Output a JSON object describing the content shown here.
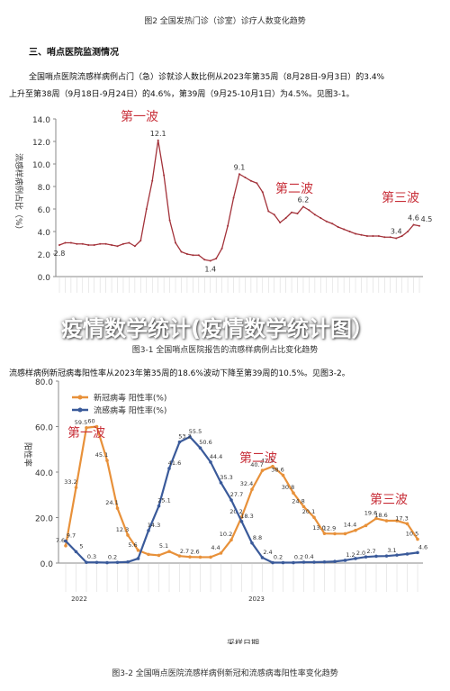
{
  "top_caption": "图2 全国发热门诊（诊室）诊疗人数变化趋势",
  "section_heading": "三、哨点医院监测情况",
  "paragraph1": [
    "全国哨点医院流感样病例占门（急）诊就诊人数比例从2023年第35周（8月28日-9月3日）的3.4%",
    "上升至第38周（9月18日-9月24日）的4.6%，第39周（9月25-10月1日）为4.5%。见图3-1。"
  ],
  "chart1": {
    "type": "line",
    "ylabel": "流感样病例占比（%）",
    "ylim": [
      0,
      14
    ],
    "yticks": [
      {
        "value": 0,
        "label": "0.0"
      },
      {
        "value": 2,
        "label": "2.0"
      },
      {
        "value": 4,
        "label": "4.0"
      },
      {
        "value": 6,
        "label": "6.0"
      },
      {
        "value": 8,
        "label": "8.0"
      },
      {
        "value": 10,
        "label": "10.0"
      },
      {
        "value": 12,
        "label": "12.0"
      },
      {
        "value": 14,
        "label": "14.0"
      }
    ],
    "color": "#a3323a",
    "values": [
      2.8,
      3.0,
      3.0,
      2.9,
      2.9,
      2.8,
      2.8,
      2.9,
      2.9,
      2.8,
      2.7,
      2.9,
      3.0,
      2.7,
      3.2,
      6.0,
      8.5,
      12.1,
      9.0,
      5.0,
      3.0,
      2.2,
      2.0,
      1.9,
      1.9,
      1.5,
      1.4,
      1.6,
      2.5,
      4.5,
      7.0,
      9.1,
      8.8,
      8.5,
      8.3,
      7.5,
      5.8,
      5.5,
      4.8,
      5.2,
      5.7,
      5.6,
      6.2,
      5.9,
      5.5,
      5.2,
      4.9,
      4.7,
      4.4,
      4.2,
      4.0,
      3.8,
      3.7,
      3.6,
      3.6,
      3.6,
      3.5,
      3.5,
      3.4,
      3.6,
      4.0,
      4.6,
      4.5
    ],
    "value_labels": [
      "2.8",
      null,
      null,
      null,
      null,
      null,
      null,
      null,
      null,
      null,
      null,
      null,
      null,
      null,
      null,
      null,
      null,
      "12.1",
      null,
      null,
      null,
      null,
      null,
      null,
      null,
      null,
      "1.4",
      null,
      null,
      null,
      null,
      "9.1",
      null,
      null,
      null,
      null,
      null,
      null,
      null,
      null,
      null,
      null,
      "6.2",
      null,
      null,
      null,
      null,
      null,
      null,
      null,
      null,
      null,
      null,
      null,
      null,
      null,
      null,
      null,
      "3.4",
      null,
      null,
      "4.6",
      "4.5"
    ],
    "annotations": [
      "第一波",
      "第二波",
      "第三波"
    ]
  },
  "overlay_title": "疫情数学统计(疫情数学统计图）",
  "caption1": "图3-1  全国哨点医院报告的流感样病例占比变化趋势",
  "paragraph2": "流感样病例新冠病毒阳性率从2023年第35周的18.6%波动下降至第39周的10.5%。见图3-2。",
  "chart2": {
    "type": "line",
    "ylabel": "阳性率",
    "ylim": [
      0,
      80
    ],
    "yticks": [
      {
        "value": 0,
        "label": "0.0"
      },
      {
        "value": 20,
        "label": "20.0"
      },
      {
        "value": 40,
        "label": "40.0"
      },
      {
        "value": 60,
        "label": "60.0"
      },
      {
        "value": 80,
        "label": "80.0"
      }
    ],
    "series": [
      {
        "name": "新冠病毒 阳性率(%)",
        "color": "#e8913a",
        "values": [
          7.6,
          33.2,
          59.5,
          60,
          45.1,
          24.1,
          12.3,
          5.6,
          3.8,
          3.4,
          5.1,
          3.1,
          2.7,
          2.6,
          2.6,
          4.4,
          10.2,
          20.2,
          32.4,
          40.7,
          42.5,
          38.6,
          30.8,
          24.8,
          20.1,
          13.0,
          12.9,
          12.9,
          14.4,
          16.5,
          19.6,
          18.6,
          18.6,
          17.3,
          10.5
        ],
        "value_labels": [
          "7.6",
          "33.2",
          "59.5",
          "60",
          "45.1",
          "24.1",
          "12.3",
          "5.6",
          null,
          null,
          "5.1",
          null,
          "2.7",
          "2.6",
          null,
          "4.4",
          "10.2",
          "20.2",
          "32.4",
          "40.7",
          "42.5",
          "38.6",
          "30.8",
          "24.8",
          "20.1",
          "13.0",
          "12.9",
          null,
          "14.4",
          null,
          "19.6",
          "18.6",
          null,
          "17.3",
          "10.5"
        ]
      },
      {
        "name": "流感病毒 阳性率(%)",
        "color": "#3a5a9a",
        "values": [
          9.7,
          5.0,
          0.3,
          0.3,
          0.2,
          0.3,
          0.5,
          2.0,
          14.3,
          25.1,
          41.6,
          53.2,
          55.5,
          50.6,
          44.4,
          35.3,
          27.7,
          18.3,
          8.8,
          2.4,
          0.2,
          0.2,
          0.2,
          0.4,
          0.4,
          0.5,
          0.7,
          1.2,
          2.0,
          2.7,
          3.0,
          3.1,
          3.5,
          4.0,
          4.6
        ],
        "value_labels": [
          "9.7",
          "5",
          "0.3",
          null,
          "0.2",
          null,
          null,
          null,
          "14.3",
          "25.1",
          "41.6",
          "53.2",
          "55.5",
          "50.6",
          "44.4",
          "35.3",
          "27.7",
          "18.3",
          "8.8",
          "2.4",
          "0.2",
          null,
          "0.2",
          "0.4",
          null,
          null,
          null,
          "1.2",
          "2.0",
          "2.7",
          null,
          "3.1",
          null,
          null,
          "4.6"
        ]
      }
    ],
    "annotations": [
      "第一波",
      "第二波",
      "第三波"
    ],
    "years": [
      "2022",
      "2023"
    ],
    "xlabel": "采样日期"
  },
  "caption2": "图3-2  全国哨点医院流感样病例新冠和流感病毒阳性率变化趋势"
}
